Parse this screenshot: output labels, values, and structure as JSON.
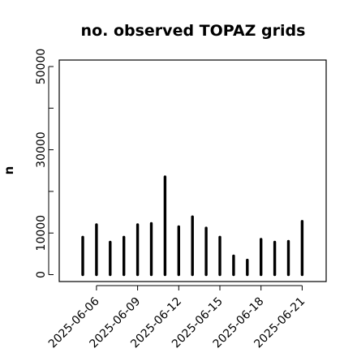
{
  "chart_data": {
    "type": "bar",
    "title": "no. observed TOPAZ grids",
    "xlabel": "",
    "ylabel": "n",
    "ylim": [
      0,
      52000
    ],
    "yticks": [
      0,
      10000,
      20000,
      30000,
      40000,
      50000
    ],
    "ytick_labels": [
      "0",
      "10000",
      "",
      "30000",
      "",
      "50000"
    ],
    "x": [
      "2025-06-05",
      "2025-06-06",
      "2025-06-07",
      "2025-06-08",
      "2025-06-09",
      "2025-06-10",
      "2025-06-11",
      "2025-06-12",
      "2025-06-13",
      "2025-06-14",
      "2025-06-15",
      "2025-06-16",
      "2025-06-17",
      "2025-06-18",
      "2025-06-19",
      "2025-06-20",
      "2025-06-21"
    ],
    "values": [
      9000,
      12000,
      7800,
      9000,
      12000,
      12300,
      23500,
      11500,
      13900,
      11200,
      9000,
      4500,
      3500,
      8500,
      7800,
      8000,
      12800
    ],
    "xtick_labels": [
      {
        "label": "2025-06-06",
        "color": "#000000"
      },
      {
        "label": "2025-06-09",
        "color": "#000000"
      },
      {
        "label": "2025-06-12",
        "color": "#228B22"
      },
      {
        "label": "2025-06-15",
        "color": "#000000"
      },
      {
        "label": "2025-06-18",
        "color": "#000000"
      },
      {
        "label": "2025-06-21",
        "color": "#000000"
      }
    ],
    "bar_color": "#000000",
    "grid": false,
    "legend": "none"
  }
}
